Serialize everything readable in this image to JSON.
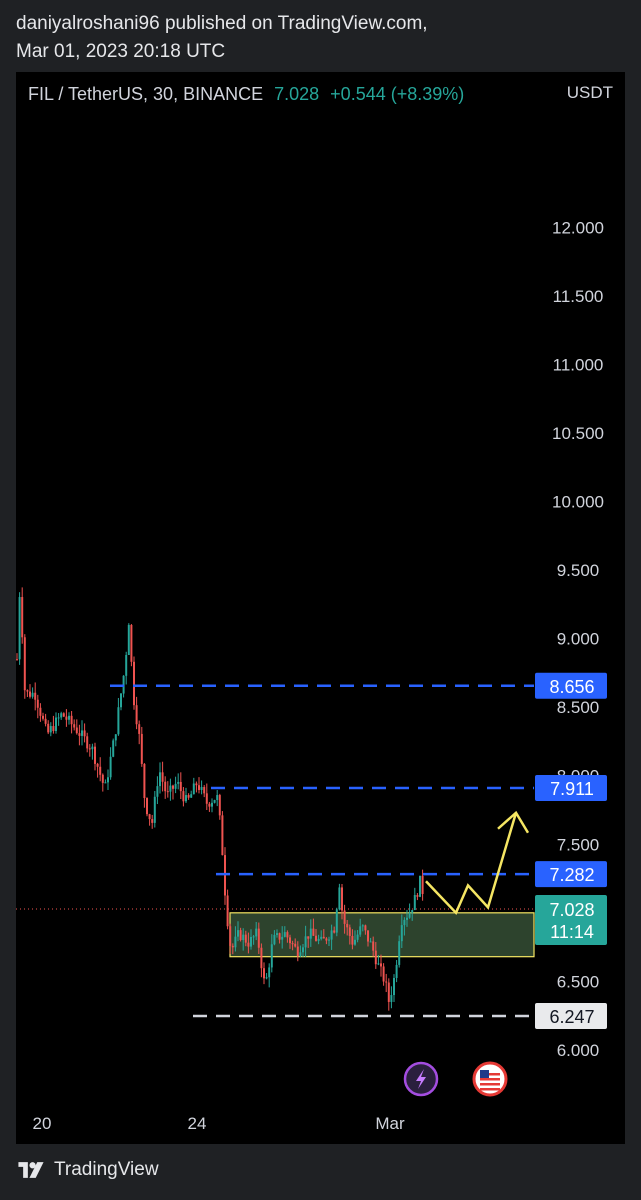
{
  "header": {
    "publisher_line": "daniyalroshani96 published on TradingView.com,",
    "date_line": "Mar 01, 2023 20:18 UTC"
  },
  "legend": {
    "symbol": "FIL / TetherUS, 30, BINANCE",
    "price": "7.028",
    "change": "+0.544 (+8.39%)"
  },
  "footer": {
    "brand": "TradingView"
  },
  "colors": {
    "background": "#000000",
    "up": "#26a69a",
    "down": "#ef5350",
    "level_line": "#2962ff",
    "support_line": "#d1d4dc",
    "zone_fill": "#3c5a3c",
    "zone_border": "#f5e663",
    "arrow": "#f5e663",
    "grid": "#000000"
  },
  "icons": [
    "lightning-icon",
    "us-flag-icon",
    "tradingview-logo-icon"
  ],
  "chart_data": {
    "type": "candlestick",
    "title": "FIL / TetherUS, 30, BINANCE",
    "ylabel": "USDT",
    "ylim": [
      5.62,
      12.55
    ],
    "y_ticks": [
      "12.000",
      "11.500",
      "11.000",
      "10.500",
      "10.000",
      "9.500",
      "9.000",
      "8.500",
      "8.000",
      "7.500",
      "6.500",
      "6.000"
    ],
    "x_ticks": [
      "20",
      "24",
      "Mar"
    ],
    "grid": false,
    "price_path": [
      {
        "x": 0,
        "y": 8.85
      },
      {
        "x": 3,
        "y": 9.4
      },
      {
        "x": 8,
        "y": 8.6
      },
      {
        "x": 18,
        "y": 8.6
      },
      {
        "x": 30,
        "y": 8.3
      },
      {
        "x": 45,
        "y": 8.45
      },
      {
        "x": 58,
        "y": 8.35
      },
      {
        "x": 75,
        "y": 8.2
      },
      {
        "x": 88,
        "y": 7.9
      },
      {
        "x": 98,
        "y": 8.3
      },
      {
        "x": 108,
        "y": 8.8
      },
      {
        "x": 112,
        "y": 9.15
      },
      {
        "x": 116,
        "y": 8.6
      },
      {
        "x": 122,
        "y": 8.3
      },
      {
        "x": 128,
        "y": 7.8
      },
      {
        "x": 135,
        "y": 7.65
      },
      {
        "x": 142,
        "y": 8.05
      },
      {
        "x": 150,
        "y": 7.85
      },
      {
        "x": 160,
        "y": 7.95
      },
      {
        "x": 170,
        "y": 7.8
      },
      {
        "x": 180,
        "y": 7.95
      },
      {
        "x": 190,
        "y": 7.8
      },
      {
        "x": 200,
        "y": 7.85
      },
      {
        "x": 204,
        "y": 7.6
      },
      {
        "x": 209,
        "y": 7.05
      },
      {
        "x": 214,
        "y": 6.72
      },
      {
        "x": 222,
        "y": 6.85
      },
      {
        "x": 232,
        "y": 6.78
      },
      {
        "x": 240,
        "y": 6.85
      },
      {
        "x": 248,
        "y": 6.45
      },
      {
        "x": 256,
        "y": 6.8
      },
      {
        "x": 268,
        "y": 6.85
      },
      {
        "x": 280,
        "y": 6.72
      },
      {
        "x": 292,
        "y": 6.85
      },
      {
        "x": 305,
        "y": 6.78
      },
      {
        "x": 318,
        "y": 6.9
      },
      {
        "x": 322,
        "y": 7.25
      },
      {
        "x": 326,
        "y": 6.95
      },
      {
        "x": 336,
        "y": 6.78
      },
      {
        "x": 345,
        "y": 6.9
      },
      {
        "x": 355,
        "y": 6.75
      },
      {
        "x": 362,
        "y": 6.6
      },
      {
        "x": 368,
        "y": 6.5
      },
      {
        "x": 372,
        "y": 6.35
      },
      {
        "x": 378,
        "y": 6.55
      },
      {
        "x": 384,
        "y": 6.95
      },
      {
        "x": 392,
        "y": 7.0
      },
      {
        "x": 398,
        "y": 7.1
      },
      {
        "x": 404,
        "y": 7.25
      },
      {
        "x": 408,
        "y": 7.03
      }
    ],
    "price_levels": [
      {
        "value": 8.656,
        "label": "8.656",
        "style": "dashed",
        "color": "#2962ff",
        "x_start": 94
      },
      {
        "value": 7.911,
        "label": "7.911",
        "style": "dashed",
        "color": "#2962ff",
        "x_start": 195
      },
      {
        "value": 7.282,
        "label": "7.282",
        "style": "dashed",
        "color": "#2962ff",
        "x_start": 200
      },
      {
        "value": 6.247,
        "label": "6.247",
        "style": "dashed",
        "color": "#d1d4dc",
        "x_start": 177
      }
    ],
    "current_price": {
      "value": 7.028,
      "label": "7.028",
      "countdown": "11:14"
    },
    "zone": {
      "from": 6.68,
      "to": 7.0,
      "x_start": 214,
      "x_end": 518
    },
    "projection_path": [
      {
        "x": 410,
        "y": 7.23
      },
      {
        "x": 440,
        "y": 7.0
      },
      {
        "x": 452,
        "y": 7.2
      },
      {
        "x": 472,
        "y": 7.04
      },
      {
        "x": 500,
        "y": 7.73
      }
    ],
    "markers": [
      {
        "icon": "lightning-icon",
        "x": 405
      },
      {
        "icon": "us-flag-icon",
        "x": 474
      }
    ]
  }
}
